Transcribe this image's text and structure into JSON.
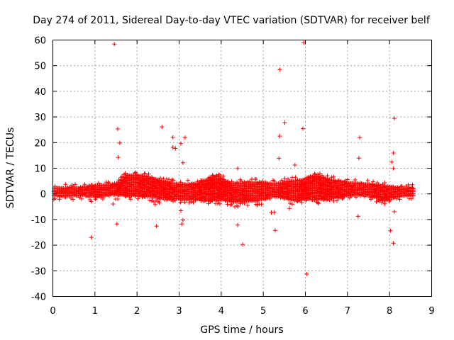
{
  "chart_data": {
    "type": "scatter",
    "title": "Day 274 of 2011, Sidereal Day-to-day VTEC variation (SDTVAR) for receiver belf",
    "xlabel": "GPS time / hours",
    "ylabel": "SDTVAR / TECUs",
    "xlim": [
      0,
      9
    ],
    "ylim": [
      -40,
      60
    ],
    "xticks": [
      "0",
      "1",
      "2",
      "3",
      "4",
      "5",
      "6",
      "7",
      "8",
      "9"
    ],
    "yticks": [
      "-40",
      "-30",
      "-20",
      "-10",
      "0",
      "10",
      "20",
      "30",
      "40",
      "50",
      "60"
    ],
    "grid": true,
    "marker": "+",
    "color": "#ff0000",
    "dense_band": {
      "x_range": [
        0,
        8.6
      ],
      "approx_range": [
        -4,
        7
      ],
      "description": "dense cluster of points with SDTVAR mostly between about -4 and 7 TECU across 0 to 8.6 hours"
    },
    "outliers": [
      {
        "x": 1.47,
        "y": 58.3
      },
      {
        "x": 5.97,
        "y": 58.8
      },
      {
        "x": 5.4,
        "y": 48.3
      },
      {
        "x": 8.12,
        "y": 29.3
      },
      {
        "x": 5.52,
        "y": 27.6
      },
      {
        "x": 2.6,
        "y": 26
      },
      {
        "x": 1.55,
        "y": 25.2
      },
      {
        "x": 5.95,
        "y": 25.3
      },
      {
        "x": 5.4,
        "y": 22.4
      },
      {
        "x": 3.15,
        "y": 21.8
      },
      {
        "x": 2.86,
        "y": 21.9
      },
      {
        "x": 7.3,
        "y": 21.8
      },
      {
        "x": 1.6,
        "y": 19.7
      },
      {
        "x": 3.05,
        "y": 19.5
      },
      {
        "x": 2.86,
        "y": 18
      },
      {
        "x": 2.92,
        "y": 17.6
      },
      {
        "x": 8.1,
        "y": 15.8
      },
      {
        "x": 1.56,
        "y": 14.1
      },
      {
        "x": 7.28,
        "y": 13.8
      },
      {
        "x": 5.38,
        "y": 13.7
      },
      {
        "x": 8.06,
        "y": 12.3
      },
      {
        "x": 3.1,
        "y": 12
      },
      {
        "x": 5.76,
        "y": 11.1
      },
      {
        "x": 4.4,
        "y": 9.8
      },
      {
        "x": 8.1,
        "y": 9.8
      },
      {
        "x": 1.44,
        "y": -4.1
      },
      {
        "x": 2.44,
        "y": -4.3
      },
      {
        "x": 0.92,
        "y": -3.1
      },
      {
        "x": 5.63,
        "y": -5.8
      },
      {
        "x": 3.05,
        "y": -6.7
      },
      {
        "x": 5.2,
        "y": -7.4
      },
      {
        "x": 5.27,
        "y": -7.3
      },
      {
        "x": 7.26,
        "y": -8.9
      },
      {
        "x": 8.12,
        "y": -7.1
      },
      {
        "x": 3.1,
        "y": -10.4
      },
      {
        "x": 1.53,
        "y": -11.9
      },
      {
        "x": 3.07,
        "y": -11.9
      },
      {
        "x": 2.47,
        "y": -12.7
      },
      {
        "x": 4.4,
        "y": -12.3
      },
      {
        "x": 5.29,
        "y": -14.4
      },
      {
        "x": 8.03,
        "y": -14.5
      },
      {
        "x": 0.92,
        "y": -17.1
      },
      {
        "x": 8.1,
        "y": -19.4
      },
      {
        "x": 4.52,
        "y": -19.9
      },
      {
        "x": 6.04,
        "y": -31.4
      }
    ]
  }
}
